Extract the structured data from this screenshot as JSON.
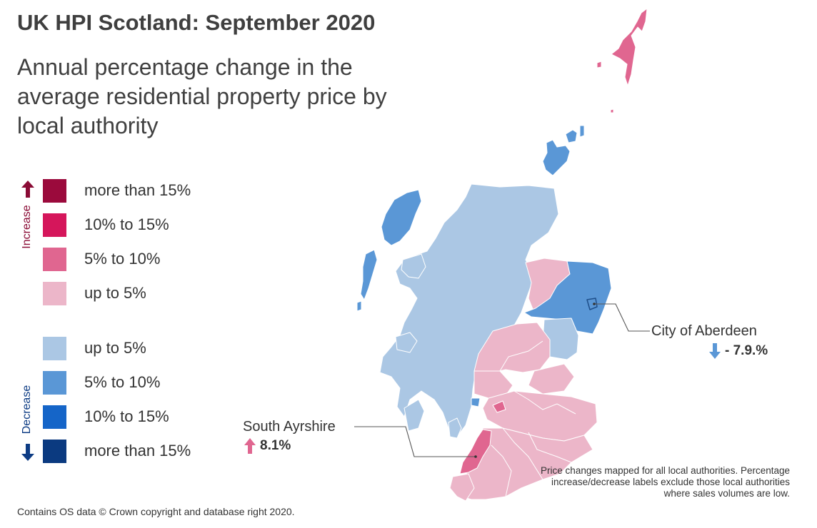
{
  "title": "UK HPI Scotland: September 2020",
  "subtitle": "Annual percentage change in the average residential property price by local authority",
  "legend": {
    "increase_label": "Increase",
    "decrease_label": "Decrease",
    "items": [
      {
        "label": "more than 15%",
        "color": "#9b0a3c"
      },
      {
        "label": "10% to 15%",
        "color": "#d5165b"
      },
      {
        "label": "5% to 10%",
        "color": "#e06690"
      },
      {
        "label": "up to 5%",
        "color": "#ecb6c9"
      },
      {
        "label": "up to 5%",
        "color": "#abc7e4"
      },
      {
        "label": "5% to 10%",
        "color": "#5a97d6"
      },
      {
        "label": "10% to 15%",
        "color": "#1565c8"
      },
      {
        "label": "more than 15%",
        "color": "#0b3a80"
      }
    ]
  },
  "callouts": {
    "aberdeen": {
      "name": "City of Aberdeen",
      "value": "- 7.9.%",
      "direction": "down"
    },
    "ayrshire": {
      "name": "South Ayrshire",
      "value": "8.1%",
      "direction": "up"
    }
  },
  "footnote": "Price changes mapped for all local authorities. Percentage increase/decrease labels exclude those local authorities where sales volumes are low.",
  "credit": "Contains OS data © Crown copyright and database right 2020.",
  "colors": {
    "increase_arrow": "#8a0b35",
    "decrease_arrow": "#0d3c84",
    "callout_up_arrow": "#e06690",
    "callout_down_arrow": "#5a97d6"
  }
}
